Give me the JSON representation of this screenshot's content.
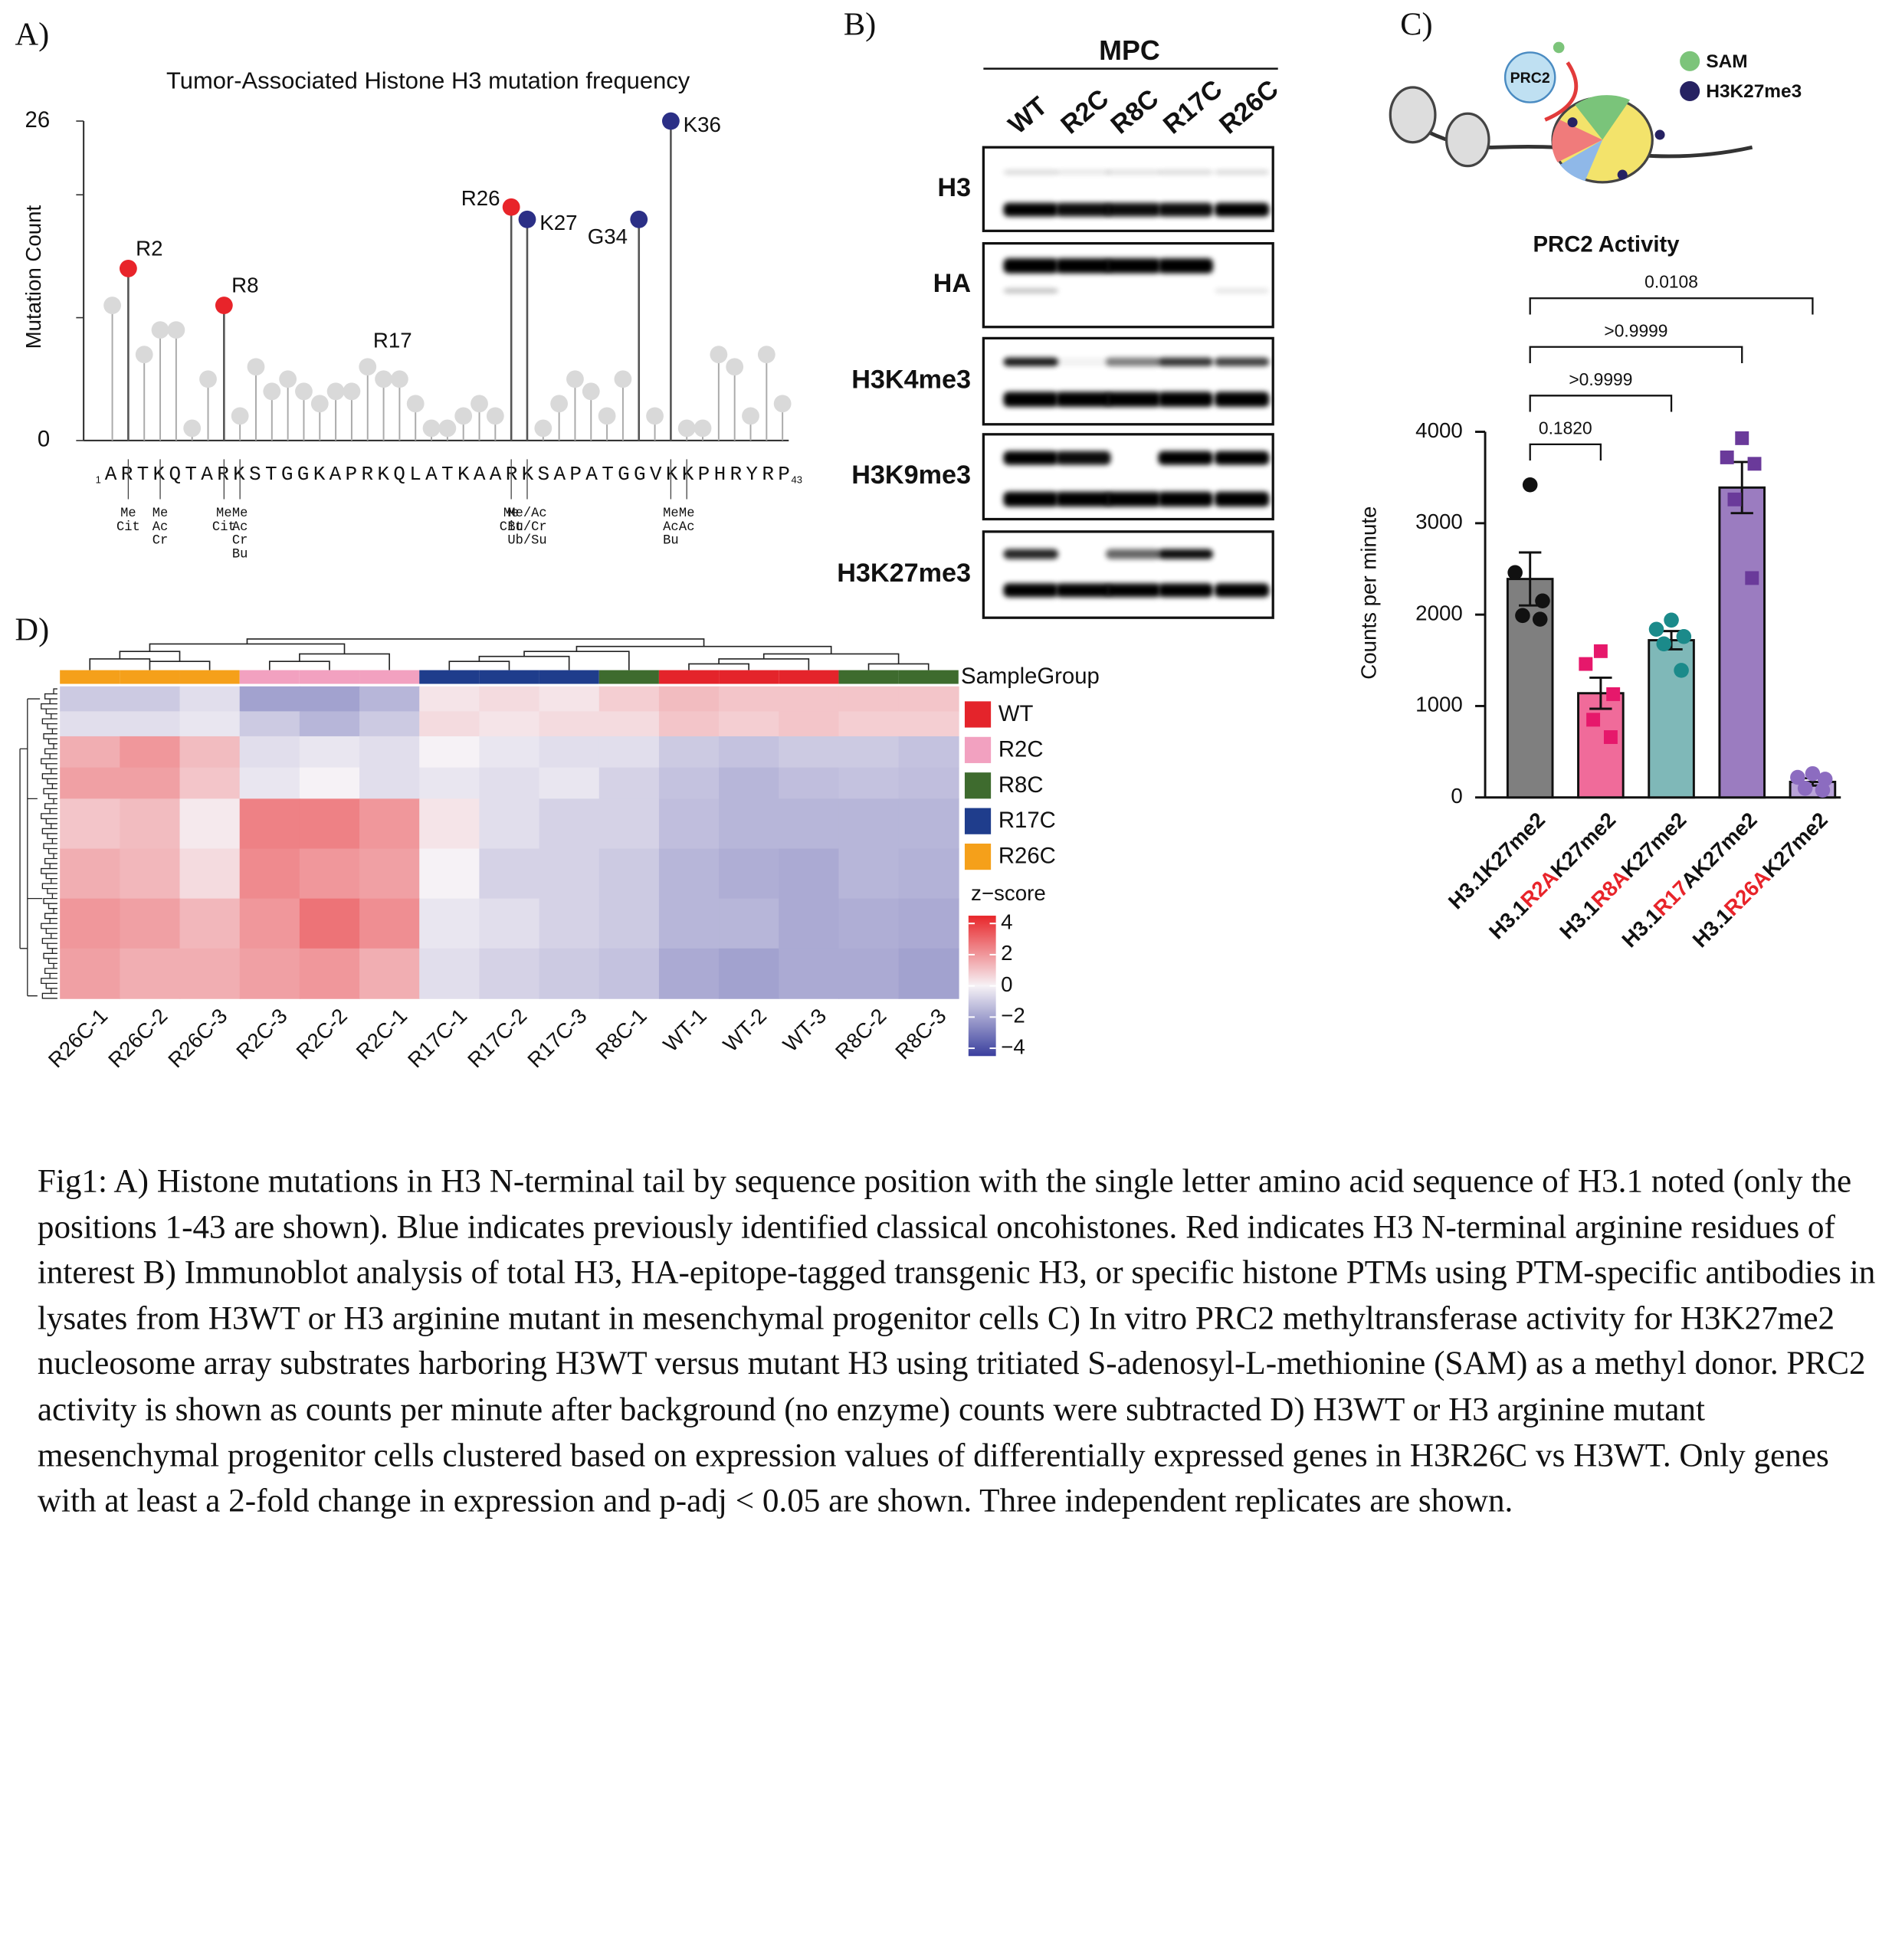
{
  "panel_labels": [
    "A)",
    "B)",
    "C)",
    "D)"
  ],
  "chart_data": [
    {
      "type": "lollipop",
      "title": "Tumor-Associated Histone H3 mutation frequency",
      "ylabel": "Mutation Count",
      "ylim": [
        0,
        26
      ],
      "yticks": [
        0,
        26
      ],
      "minor_yticks": [
        10,
        20
      ],
      "xlim": [
        1,
        43
      ],
      "sequence": "ARTKQTARKSTGGKAPRKQLATKAARKSAPATGGVKKPHRYRP",
      "point_color": "#d9d9d9",
      "values": [
        11,
        14,
        7,
        9,
        9,
        1,
        5,
        11,
        2,
        6,
        4,
        5,
        4,
        3,
        4,
        4,
        6,
        5,
        5,
        3,
        1,
        1,
        2,
        3,
        2,
        19,
        18,
        1,
        3,
        5,
        4,
        2,
        5,
        18,
        2,
        26,
        1,
        1,
        7,
        6,
        2,
        7,
        3
      ],
      "highlights": [
        {
          "position": 2,
          "label": "R2",
          "color": "#e8242a",
          "side": "right"
        },
        {
          "position": 8,
          "label": "R8",
          "color": "#e8242a",
          "side": "right"
        },
        {
          "position": 17,
          "label": "R17",
          "color": "#d9d9d9",
          "side": "top"
        },
        {
          "position": 26,
          "label": "R26",
          "color": "#e8242a",
          "side": "left"
        },
        {
          "position": 27,
          "label": "K27",
          "color": "#2b2f86",
          "side": "right"
        },
        {
          "position": 34,
          "label": "G34",
          "color": "#2b2f86",
          "side": "left"
        },
        {
          "position": 36,
          "label": "K36",
          "color": "#2b2f86",
          "side": "right"
        }
      ],
      "ptm_labels": [
        {
          "position": 2,
          "lines": [
            "Me",
            "Cit"
          ]
        },
        {
          "position": 4,
          "lines": [
            "Me",
            "Ac",
            "Cr"
          ]
        },
        {
          "position": 8,
          "lines": [
            "Me",
            "Cit"
          ]
        },
        {
          "position": 9,
          "lines": [
            "Me",
            "Ac",
            "Cr",
            "Bu"
          ]
        },
        {
          "position": 26,
          "lines": [
            "Me",
            "Cit"
          ]
        },
        {
          "position": 27,
          "lines": [
            "Me/Ac",
            "Bu/Cr",
            "Ub/Su"
          ]
        },
        {
          "position": 36,
          "lines": [
            "Me",
            "Ac",
            "Bu"
          ]
        },
        {
          "position": 37,
          "lines": [
            "Me",
            "Ac"
          ]
        }
      ]
    },
    {
      "type": "bar",
      "title": "PRC2 Activity",
      "ylabel": "Counts per minute",
      "ylim": [
        0,
        4000
      ],
      "yticks": [
        0,
        1000,
        2000,
        3000,
        4000
      ],
      "categories": [
        [
          "H3.1K27me2"
        ],
        [
          "H3.1",
          "R2A",
          "K27me2"
        ],
        [
          "H3.1",
          "R8A",
          "K27me2"
        ],
        [
          "H3.1",
          "R17",
          "A",
          "K27me2"
        ],
        [
          "H3.1",
          "R26A",
          "K27me2"
        ]
      ],
      "highlight_color": "#e8242a",
      "highlight_parts": [
        [],
        [
          1
        ],
        [
          1
        ],
        [
          1
        ],
        [
          1
        ]
      ],
      "values": [
        2390,
        1140,
        1720,
        3390,
        170
      ],
      "errors": [
        290,
        170,
        100,
        280,
        40
      ],
      "colors": [
        "#7f7f7f",
        "#f06b9a",
        "#7fb8b8",
        "#9b7cc0",
        "#b9a3d8"
      ],
      "point_colors": [
        "#111111",
        "#e6186b",
        "#1b8a8a",
        "#6a3a9a",
        "#8c6cc0"
      ],
      "point_shapes": [
        "circle",
        "square",
        "circle",
        "square",
        "circle"
      ],
      "points": [
        [
          3420,
          2460,
          2150,
          1990,
          1950
        ],
        [
          1600,
          1460,
          1130,
          850,
          660
        ],
        [
          1940,
          1840,
          1760,
          1680,
          1390
        ],
        [
          3930,
          3720,
          3650,
          3260,
          2400
        ],
        [
          260,
          220,
          200,
          100,
          80
        ]
      ],
      "comparisons": [
        {
          "from": 0,
          "to": 1,
          "label": "0.1820"
        },
        {
          "from": 0,
          "to": 2,
          "label": ">0.9999"
        },
        {
          "from": 0,
          "to": 3,
          "label": ">0.9999"
        },
        {
          "from": 0,
          "to": 4,
          "label": "0.0108"
        }
      ]
    },
    {
      "type": "heatmap",
      "categories": [
        "R26C-1",
        "R26C-2",
        "R26C-3",
        "R2C-3",
        "R2C-2",
        "R2C-1",
        "R17C-1",
        "R17C-2",
        "R17C-3",
        "R8C-1",
        "WT-1",
        "WT-2",
        "WT-3",
        "R8C-2",
        "R8C-3"
      ],
      "group_title": "SampleGroup",
      "groups": [
        {
          "name": "WT",
          "color": "#e4242b"
        },
        {
          "name": "R2C",
          "color": "#f2a1c0"
        },
        {
          "name": "R8C",
          "color": "#3e6b2e"
        },
        {
          "name": "R17C",
          "color": "#1f3d8c"
        },
        {
          "name": "R26C",
          "color": "#f5a01a"
        }
      ],
      "column_group": [
        4,
        4,
        4,
        1,
        1,
        1,
        3,
        3,
        3,
        2,
        0,
        0,
        0,
        2,
        2
      ],
      "scale_title": "z−score",
      "zlim": [
        -4.5,
        4.5
      ],
      "zticks": [
        4,
        2,
        0,
        {
          "value": -2,
          "label": "−2"
        },
        {
          "value": -4,
          "label": "−4"
        }
      ],
      "colors": {
        "low": "#3a3f9e",
        "mid": "#f6f2f6",
        "high": "#e8262a"
      },
      "values": [
        [
          -1,
          -1,
          -0.5,
          -2,
          -2,
          -1.5,
          0.3,
          0.5,
          0.3,
          0.8,
          1.2,
          1,
          1,
          1,
          1
        ],
        [
          -0.5,
          -0.5,
          -0.3,
          -1,
          -1.5,
          -1,
          0.5,
          0.3,
          0.5,
          0.5,
          1,
          0.8,
          1,
          0.8,
          0.8
        ],
        [
          1.5,
          2,
          1.2,
          -0.5,
          -0.3,
          -0.5,
          0,
          -0.3,
          -0.5,
          -0.5,
          -1,
          -1.2,
          -1,
          -1,
          -1.2
        ],
        [
          1.8,
          1.8,
          1,
          -0.3,
          0,
          -0.5,
          -0.3,
          -0.5,
          -0.3,
          -0.8,
          -1.2,
          -1.5,
          -1.3,
          -1.2,
          -1.3
        ],
        [
          1,
          1.2,
          0.2,
          2.5,
          2.5,
          2,
          0.3,
          -0.5,
          -0.8,
          -0.8,
          -1.3,
          -1.5,
          -1.5,
          -1.5,
          -1.5
        ],
        [
          1.5,
          1.3,
          0.5,
          2.3,
          2,
          1.8,
          0,
          -0.8,
          -0.8,
          -1,
          -1.5,
          -1.7,
          -1.8,
          -1.5,
          -1.6
        ],
        [
          2,
          1.8,
          1.3,
          2,
          2.8,
          2.2,
          -0.3,
          -0.5,
          -0.8,
          -1,
          -1.5,
          -1.5,
          -1.8,
          -1.7,
          -1.8
        ],
        [
          1.8,
          1.5,
          1.5,
          1.8,
          2,
          1.5,
          -0.5,
          -0.8,
          -1,
          -1.2,
          -1.8,
          -2,
          -1.8,
          -1.8,
          -2
        ]
      ]
    }
  ],
  "blot": {
    "title": "MPC",
    "lanes": [
      "WT",
      "R2C",
      "R8C",
      "R17C",
      "R26C"
    ],
    "rows": [
      "H3",
      "HA",
      "H3K4me3",
      "H3K9me3",
      "H3K27me3"
    ]
  },
  "schematic": {
    "enzyme": "PRC2",
    "legend": [
      {
        "label": "SAM",
        "color": "#7cc47a"
      },
      {
        "label": "H3K27me3",
        "color": "#262262"
      }
    ]
  },
  "caption": "Fig1: A) Histone mutations in H3 N-terminal tail by sequence position with the single letter amino acid sequence of H3.1 noted (only the positions 1-43 are shown). Blue indicates previously identified classical oncohistones. Red indicates H3 N-terminal arginine residues of interest B) Immunoblot analysis of total H3, HA-epitope-tagged transgenic H3, or specific histone PTMs using PTM-specific antibodies in lysates from H3WT or H3 arginine mutant in mesenchymal progenitor cells C) In vitro PRC2 methyltransferase activity for H3K27me2 nucleosome array substrates harboring H3WT versus mutant H3 using tritiated S-adenosyl-L-methionine (SAM) as a methyl donor. PRC2 activity is shown as counts per minute after background (no enzyme) counts were subtracted D) H3WT or H3 arginine mutant mesenchymal progenitor cells clustered based on expression values of differentially expressed genes in H3R26C vs H3WT. Only genes with at least a 2-fold change in expression and p-adj < 0.05 are shown. Three independent replicates are shown."
}
